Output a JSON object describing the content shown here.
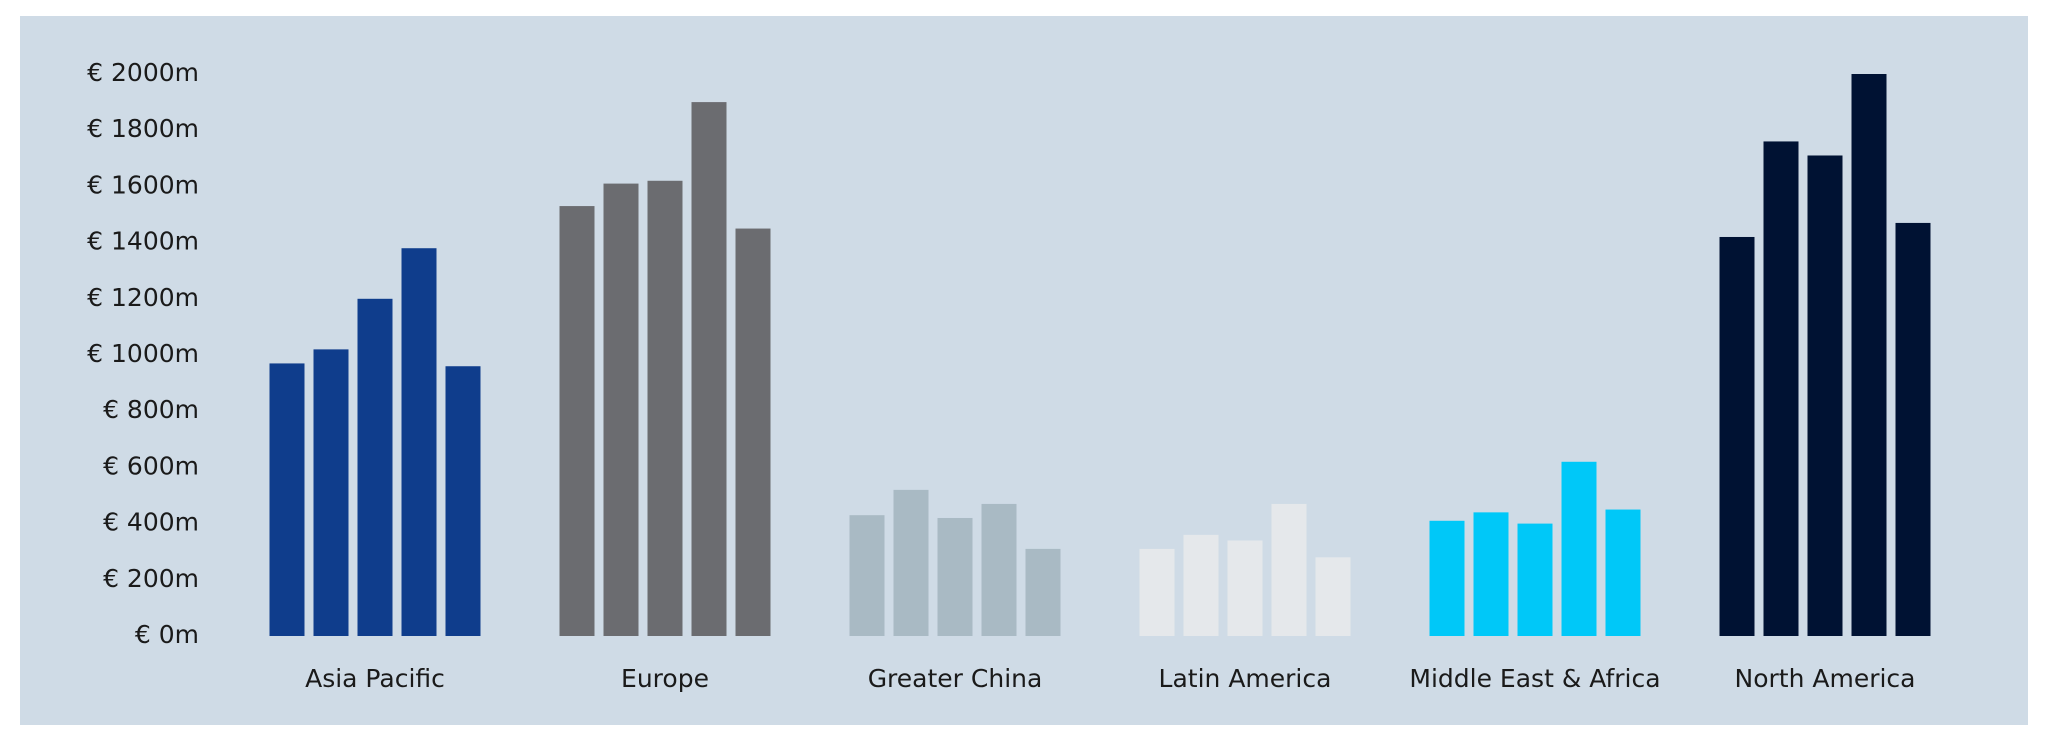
{
  "chart_data": {
    "type": "bar",
    "categories": [
      "Asia Pacific",
      "Europe",
      "Greater China",
      "Latin America",
      "Middle East & Africa",
      "North America"
    ],
    "colors": [
      "#0f3d8c",
      "#6b6c70",
      "#a9bac4",
      "#e5e8eb",
      "#00c8f8",
      "#001233"
    ],
    "values": [
      [
        970,
        1020,
        1200,
        1380,
        960
      ],
      [
        1530,
        1610,
        1620,
        1900,
        1450
      ],
      [
        430,
        520,
        420,
        470,
        310
      ],
      [
        310,
        360,
        340,
        470,
        280
      ],
      [
        410,
        440,
        400,
        620,
        450
      ],
      [
        1420,
        1760,
        1710,
        2000,
        1470
      ]
    ],
    "ylim": [
      0,
      2000
    ],
    "yticks": [
      {
        "value": 0,
        "label": "€ 0m"
      },
      {
        "value": 200,
        "label": "€ 200m"
      },
      {
        "value": 400,
        "label": "€ 400m"
      },
      {
        "value": 600,
        "label": "€ 600m"
      },
      {
        "value": 800,
        "label": "€ 800m"
      },
      {
        "value": 1000,
        "label": "€ 1000m"
      },
      {
        "value": 1200,
        "label": "€ 1200m"
      },
      {
        "value": 1400,
        "label": "€ 1400m"
      },
      {
        "value": 1600,
        "label": "€ 1600m"
      },
      {
        "value": 1800,
        "label": "€ 1800m"
      },
      {
        "value": 2000,
        "label": "€ 2000m"
      }
    ]
  }
}
